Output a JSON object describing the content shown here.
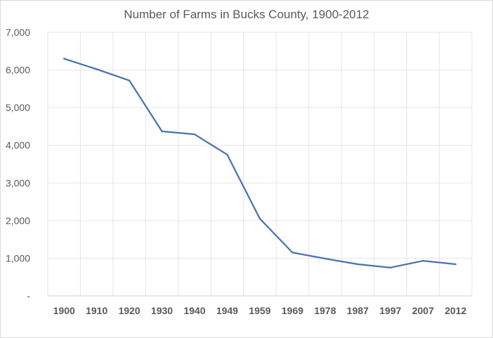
{
  "chart_data": {
    "type": "line",
    "title": "Number of Farms in Bucks County, 1900-2012",
    "xlabel": "",
    "ylabel": "",
    "categories": [
      "1900",
      "1910",
      "1920",
      "1930",
      "1940",
      "1949",
      "1959",
      "1969",
      "1978",
      "1987",
      "1997",
      "2007",
      "2012"
    ],
    "series": [
      {
        "values": [
          6300,
          6020,
          5720,
          4370,
          4290,
          3750,
          2050,
          1150,
          990,
          840,
          750,
          930,
          840
        ],
        "color": "#4a72b0"
      }
    ],
    "ylim": [
      0,
      7000
    ],
    "yticks": [
      0,
      1000,
      2000,
      3000,
      4000,
      5000,
      6000,
      7000
    ],
    "ytick_labels": [
      "-",
      "1,000",
      "2,000",
      "3,000",
      "4,000",
      "5,000",
      "6,000",
      "7,000"
    ],
    "grid": "vertical and horizontal",
    "legend": "none"
  }
}
